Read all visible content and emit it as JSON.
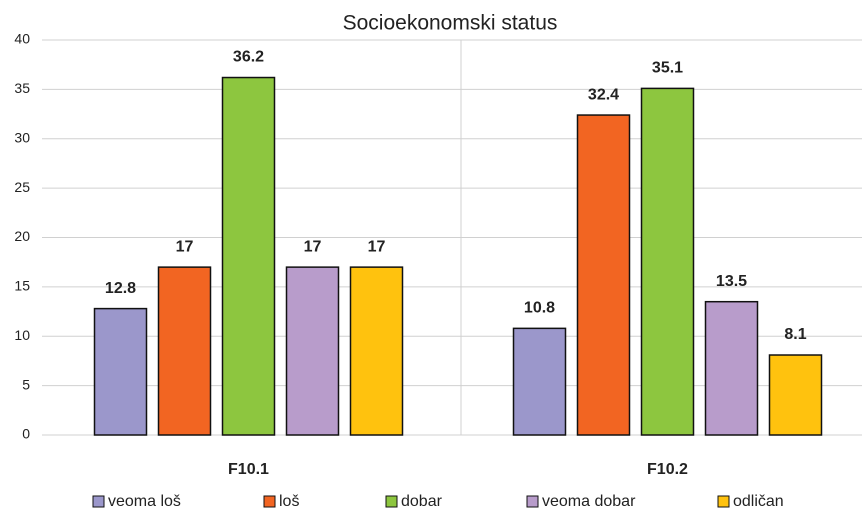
{
  "chart_data": {
    "type": "bar",
    "title": "Socioekonomski status",
    "categories": [
      "F10.1",
      "F10.2"
    ],
    "series": [
      {
        "name": "veoma loš",
        "color": "#9b97cb",
        "values": [
          12.8,
          10.8
        ]
      },
      {
        "name": "loš",
        "color": "#f26522",
        "values": [
          17,
          32.4
        ]
      },
      {
        "name": "dobar",
        "color": "#8dc63f",
        "values": [
          36.2,
          35.1
        ]
      },
      {
        "name": "veoma dobar",
        "color": "#b89ccb",
        "values": [
          17,
          13.5
        ]
      },
      {
        "name": "odličan",
        "color": "#ffc20e",
        "values": [
          17,
          8.1
        ]
      }
    ],
    "ylim": [
      0,
      40
    ],
    "yticks": [
      0,
      5,
      10,
      15,
      20,
      25,
      30,
      35,
      40
    ],
    "grid": true,
    "legend": "bottom"
  }
}
